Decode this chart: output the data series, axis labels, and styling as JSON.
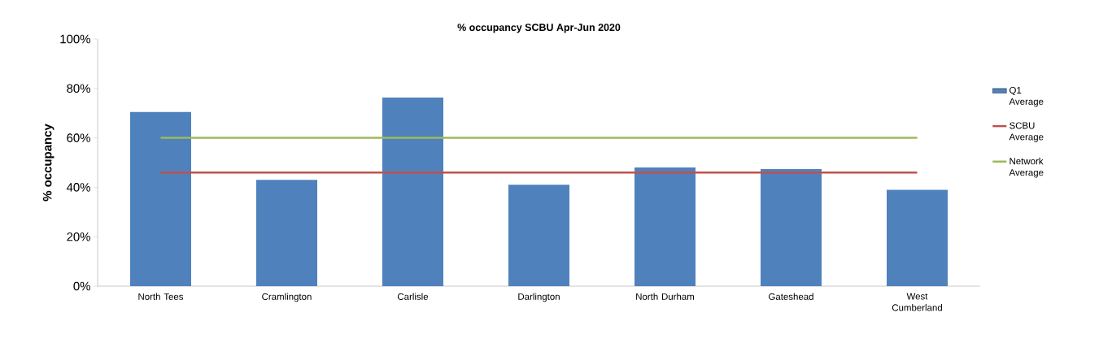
{
  "chart_data": {
    "type": "bar",
    "title": "% occupancy SCBU Apr-Jun 2020",
    "ylabel": "% occupancy",
    "categories": [
      "North Tees",
      "Cramlington",
      "Carlisle",
      "Darlington",
      "North Durham",
      "Gateshead",
      "West Cumberland"
    ],
    "series": [
      {
        "name": "Q1 Average",
        "color": "#4f81bd",
        "values": [
          70.5,
          43,
          76.3,
          41,
          48,
          47.4,
          39
        ]
      },
      {
        "name": "SCBU Average",
        "type": "line",
        "color": "#c0504d",
        "values": [
          46,
          46,
          46,
          46,
          46,
          46,
          46
        ]
      },
      {
        "name": "Network Average",
        "type": "line",
        "color": "#9bbb59",
        "values": [
          60,
          60,
          60,
          60,
          60,
          60,
          60
        ]
      }
    ],
    "ylim": [
      0,
      100
    ],
    "yticks": [
      {
        "value": 0,
        "label": "0%"
      },
      {
        "value": 20,
        "label": "20%"
      },
      {
        "value": 40,
        "label": "40%"
      },
      {
        "value": 60,
        "label": "60%"
      },
      {
        "value": 80,
        "label": "80%"
      },
      {
        "value": 100,
        "label": "100%"
      }
    ],
    "legend": "right",
    "marker": "none"
  }
}
